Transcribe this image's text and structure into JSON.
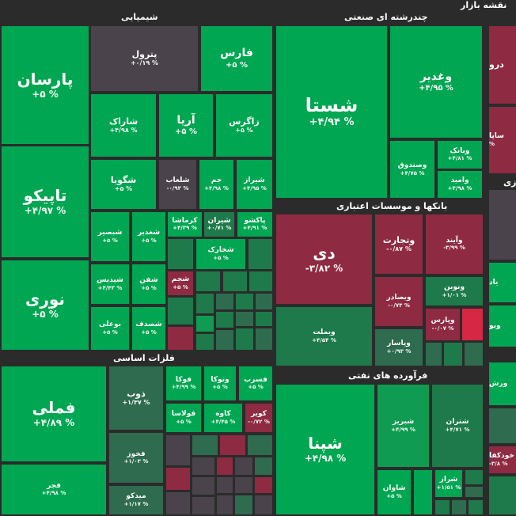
{
  "title": "نقشه بازار",
  "sectors": {
    "chemical": "شیمیایی",
    "multi": "چندرشته ای صنعتی",
    "banks": "بانکها و موسسات اعتباری",
    "metals": "فلزات اساسی",
    "refinery": "فرآورده های نفتی"
  },
  "tiles": {
    "parsan": {
      "name": "پارسان",
      "pct": "% ۵+"
    },
    "petrol": {
      "name": "پترول",
      "pct": "% ۰/۱۹+"
    },
    "fars": {
      "name": "فارس",
      "pct": "% ۵+"
    },
    "shirak": {
      "name": "شاراک",
      "pct": "% ۴/۹۸+"
    },
    "aria": {
      "name": "آریا",
      "pct": "% ۵+"
    },
    "zagros": {
      "name": "زاگرس",
      "pct": "% ۵+"
    },
    "tapiko": {
      "name": "تاپیکو",
      "pct": "% ۴/۹۷+"
    },
    "shgoya": {
      "name": "شگویا",
      "pct": "% ۵+"
    },
    "shlaab": {
      "name": "شلعاب",
      "pct": "% ۰/۹۳-"
    },
    "jam": {
      "name": "جم",
      "pct": "% ۴/۹۸+"
    },
    "shiraz": {
      "name": "شیراز",
      "pct": "% ۴/۹۵+"
    },
    "shbasir": {
      "name": "شبصیر",
      "pct": "% ۵+"
    },
    "shghadir": {
      "name": "شغدیر",
      "pct": "% ۵+"
    },
    "kermasha": {
      "name": "کرماشا",
      "pct": "% ۴/۳۹+"
    },
    "shiran": {
      "name": "شیران",
      "pct": "% ۰/۷۱+"
    },
    "pakshu": {
      "name": "پاکشو",
      "pct": "% ۴/۹۱+"
    },
    "shkhark": {
      "name": "شخارک",
      "pct": "% ۵+"
    },
    "nouri": {
      "name": "نوری",
      "pct": "% ۵+"
    },
    "shpdis": {
      "name": "شپدیس",
      "pct": "% ۴/۴۳+"
    },
    "shefan": {
      "name": "شفن",
      "pct": "% ۵+"
    },
    "shajam": {
      "name": "شجم",
      "pct": "% ۵+"
    },
    "bouali": {
      "name": "بوعلی",
      "pct": "% ۵+"
    },
    "shsadaf": {
      "name": "شصدف",
      "pct": "% ۵+"
    },
    "shasta": {
      "name": "شستا",
      "pct": "% ۴/۹۴+"
    },
    "vghadir": {
      "name": "وغدیر",
      "pct": "% ۴/۹۵+"
    },
    "vsandoq": {
      "name": "وصندوق",
      "pct": "% ۴/۷۵+"
    },
    "vbank": {
      "name": "وبانک",
      "pct": "% ۴/۸۱+"
    },
    "vamid": {
      "name": "وامید",
      "pct": "% ۴/۹۸+"
    },
    "dey": {
      "name": "دی",
      "pct": "% ۳/۸۲-"
    },
    "vtejarat": {
      "name": "وتجارت",
      "pct": "% ۰/۸۷-"
    },
    "vayand": {
      "name": "وآیند",
      "pct": "% ۳/۹۹-"
    },
    "vbemellat": {
      "name": "وبملت",
      "pct": "% ۴/۵۴+"
    },
    "vbsader": {
      "name": "وبصادر",
      "pct": "% ۰/۷۳-"
    },
    "vnovin": {
      "name": "ونوین",
      "pct": "% ۱/۰۱+"
    },
    "vpasar": {
      "name": "وپاسار",
      "pct": "% ۰/۹۳+"
    },
    "vparas": {
      "name": "وپارس",
      "pct": "% ۰/۰۷-"
    },
    "fameli": {
      "name": "فملی",
      "pct": "% ۴/۸۹+"
    },
    "fajr": {
      "name": "فجر",
      "pct": "% ۴/۹۸+"
    },
    "zob": {
      "name": "ذوب",
      "pct": "% ۱/۳۷+"
    },
    "fouka": {
      "name": "فوکا",
      "pct": "% ۴/۹۹+"
    },
    "vtouka": {
      "name": "وتوکا",
      "pct": "% ۵+"
    },
    "fasrab": {
      "name": "فسرب",
      "pct": "% ۵+"
    },
    "foulasa": {
      "name": "فولاسا",
      "pct": "% ۵+"
    },
    "kaveh": {
      "name": "کاوه",
      "pct": "% ۴/۴۵+"
    },
    "kavir": {
      "name": "کویر",
      "pct": "% ۰/۷۲-"
    },
    "fakhouz": {
      "name": "فخوز",
      "pct": "% ۱/۰۳+"
    },
    "midko": {
      "name": "میدکو",
      "pct": "% ۱/۱۷+"
    },
    "shpna": {
      "name": "شپنا",
      "pct": "% ۴/۹۸+"
    },
    "shebriz": {
      "name": "شبریز",
      "pct": "% ۴/۹۹+"
    },
    "shtran": {
      "name": "شتران",
      "pct": "% ۴/۷۱+"
    },
    "shavan": {
      "name": "شاوان",
      "pct": "% ۵+"
    },
    "shraz": {
      "name": "شراز",
      "pct": "% ۱/۵۱+"
    },
    "dro": {
      "name": "درو",
      "pct": ""
    },
    "sapa": {
      "name": "ساپا",
      "pct": "% "
    },
    "khodkafa": {
      "name": "خودکفا",
      "pct": "% ۳/۸-"
    },
    "vrsh": {
      "name": "ورش",
      "pct": ""
    },
    "zati": {
      "name": "زی",
      "pct": ""
    },
    "yad": {
      "name": "یاد",
      "pct": ""
    },
    "oul": {
      "name": "وبو",
      "pct": ""
    }
  }
}
